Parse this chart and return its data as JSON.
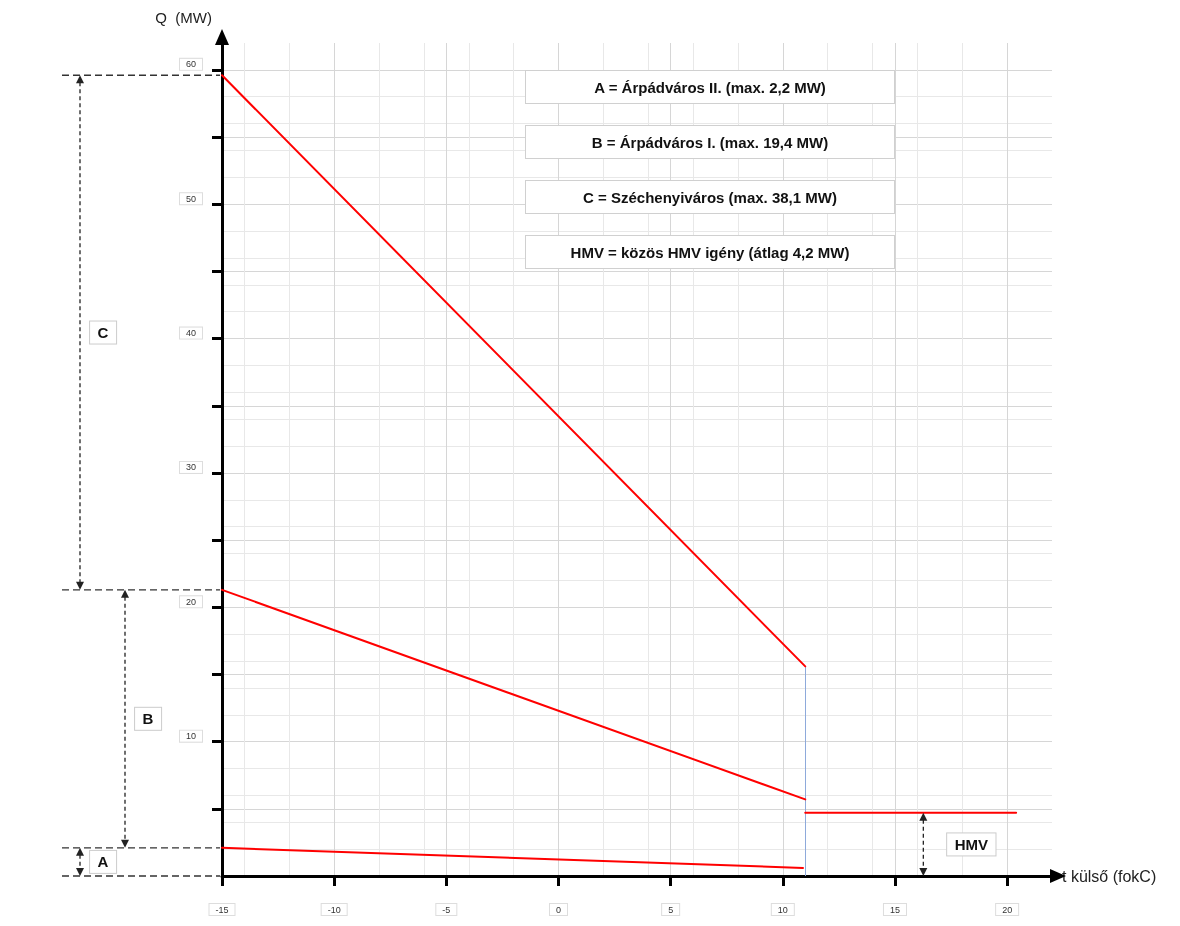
{
  "chart_data": {
    "type": "line",
    "xlabel": "t külső (fokC)",
    "ylabel": "Q  (MW)",
    "xlim": [
      -15,
      22
    ],
    "ylim": [
      0,
      62
    ],
    "xticks": [
      -15,
      -10,
      -5,
      0,
      5,
      10,
      15,
      20
    ],
    "yticks": [
      {
        "value": 5,
        "label": null
      },
      10,
      {
        "value": 15,
        "label": null
      },
      20,
      {
        "value": 25,
        "label": null
      },
      30,
      {
        "value": 35,
        "label": null
      },
      40,
      {
        "value": 45,
        "label": null
      },
      50,
      {
        "value": 55,
        "label": null
      },
      60
    ],
    "series": [
      {
        "color": "#ff0000",
        "x": [
          -15,
          10.9
        ],
        "values": [
          2.1,
          0.6
        ]
      },
      {
        "color": "#ff0000",
        "x": [
          -15,
          11
        ],
        "values": [
          21.3,
          5.7
        ]
      },
      {
        "color": "#ff0000",
        "x": [
          -15,
          11
        ],
        "values": [
          59.6,
          15.6
        ]
      },
      {
        "color": "#ff0000",
        "x": [
          11,
          20.4
        ],
        "values": [
          4.7,
          4.7
        ]
      }
    ],
    "ref_lines": [
      {
        "axis": "x",
        "value": 11,
        "color": "#8eaadb"
      }
    ],
    "annotations": [
      "A = Árpádváros II.  (max. 2,2 MW)",
      "B = Árpádváros I.  (max. 19,4 MW)",
      "C = Széchenyiváros  (max. 38,1 MW)",
      "HMV = közös HMV igény (átlag 4,2 MW)",
      "A",
      "B",
      "C",
      "HMV"
    ],
    "grid": true,
    "marker": "none",
    "line_style": "solid"
  }
}
